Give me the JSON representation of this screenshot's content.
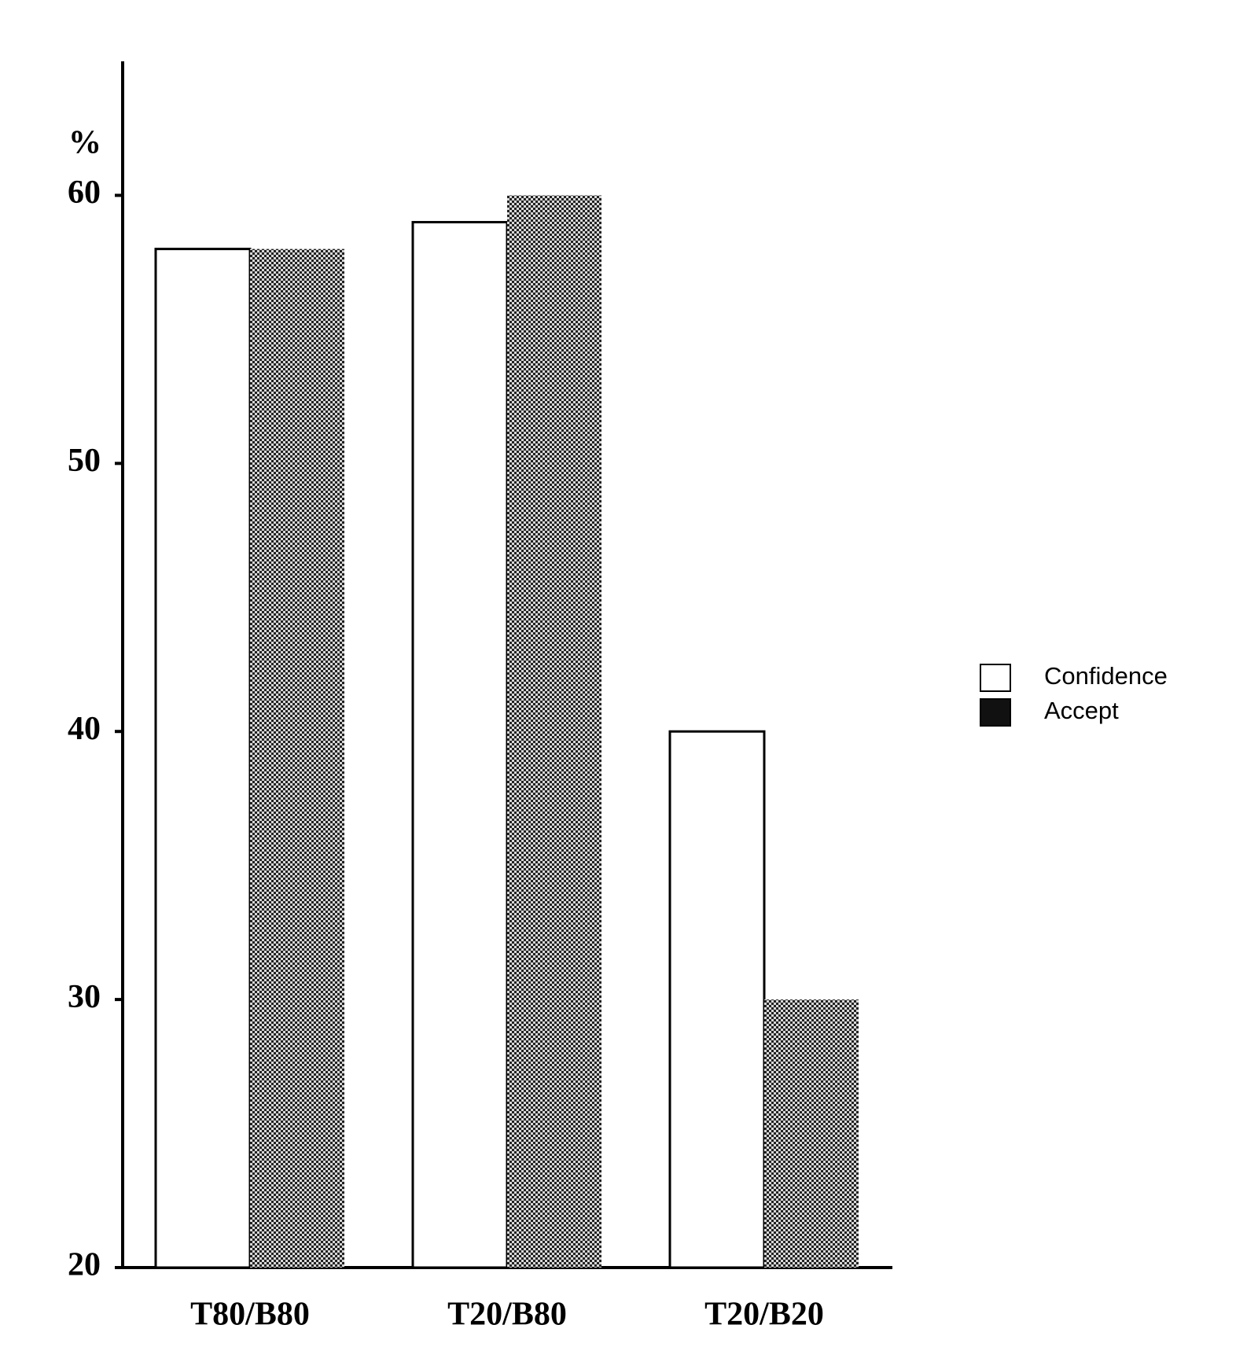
{
  "chart_data": {
    "type": "bar",
    "y_label": "%",
    "categories": [
      "T80/B80",
      "T20/B80",
      "T20/B20"
    ],
    "series": [
      {
        "name": "Confidence",
        "color": "#ffffff",
        "values": [
          58,
          59,
          40
        ]
      },
      {
        "name": "Accept",
        "color": "#222222",
        "values": [
          58,
          60,
          30
        ]
      }
    ],
    "ylim": [
      20,
      65
    ],
    "yticks": [
      20,
      30,
      40,
      50,
      60
    ],
    "grid": false,
    "legend": "right"
  }
}
